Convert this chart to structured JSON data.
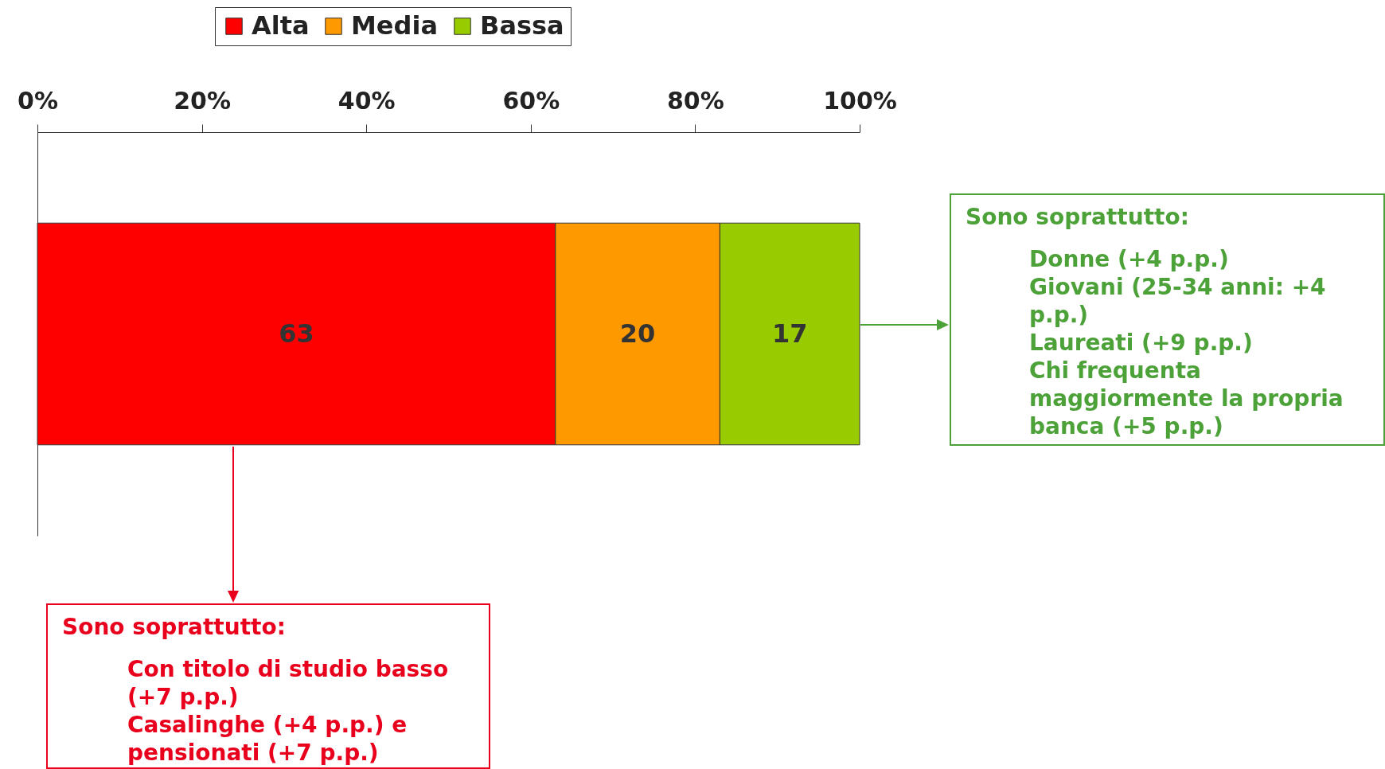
{
  "chart_data": {
    "type": "bar",
    "orientation": "horizontal",
    "stacked": true,
    "categories": [
      null
    ],
    "series": [
      {
        "name": "Alta",
        "color": "#ff0000",
        "values": [
          63
        ]
      },
      {
        "name": "Media",
        "color": "#ff9900",
        "values": [
          20
        ]
      },
      {
        "name": "Bassa",
        "color": "#99cc00",
        "values": [
          17
        ]
      }
    ],
    "xlim": [
      0,
      100
    ],
    "xticks": [
      {
        "value": 0,
        "label": "0%"
      },
      {
        "value": 20,
        "label": "20%"
      },
      {
        "value": 40,
        "label": "40%"
      },
      {
        "value": 60,
        "label": "60%"
      },
      {
        "value": 80,
        "label": "80%"
      },
      {
        "value": 100,
        "label": "100%"
      }
    ],
    "data_labels": true,
    "legend": "top",
    "grid": false,
    "annotations": [
      "Sono soprattutto:\nCon titolo di studio basso (+7 p.p.)\nCasalinghe (+4 p.p.) e pensionati (+7 p.p.)",
      "Sono soprattutto:\nDonne (+4 p.p.)\nGiovani (25-34 anni: +4 p.p.)\nLaureati (+9 p.p.)\nChi frequenta maggiormente la propria banca (+5 p.p.)"
    ]
  }
}
